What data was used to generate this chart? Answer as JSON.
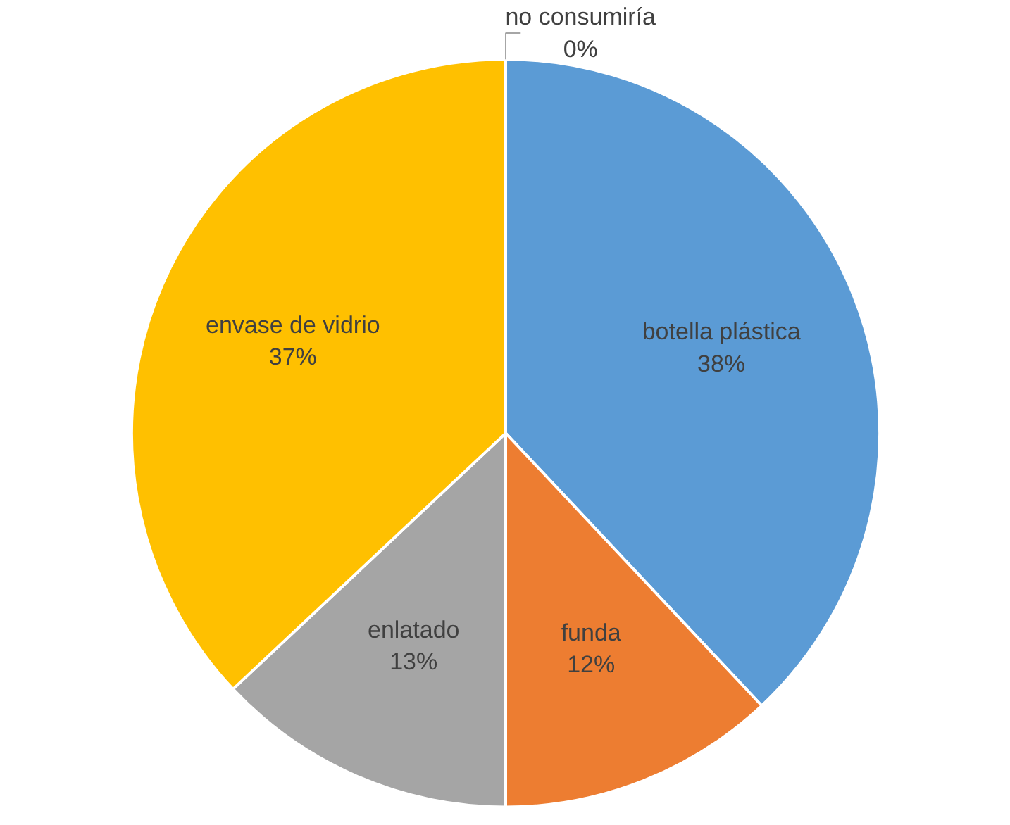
{
  "chart_data": {
    "type": "pie",
    "categories": [
      "botella plástica",
      "funda",
      "enlatado",
      "envase de vidrio",
      "no consumiría"
    ],
    "values": [
      38,
      12,
      13,
      37,
      0
    ],
    "colors": [
      "#5b9bd5",
      "#ed7d31",
      "#a5a5a5",
      "#ffc000",
      "#4472c4"
    ],
    "value_labels": [
      "38%",
      "12%",
      "13%",
      "37%",
      "0%"
    ]
  }
}
